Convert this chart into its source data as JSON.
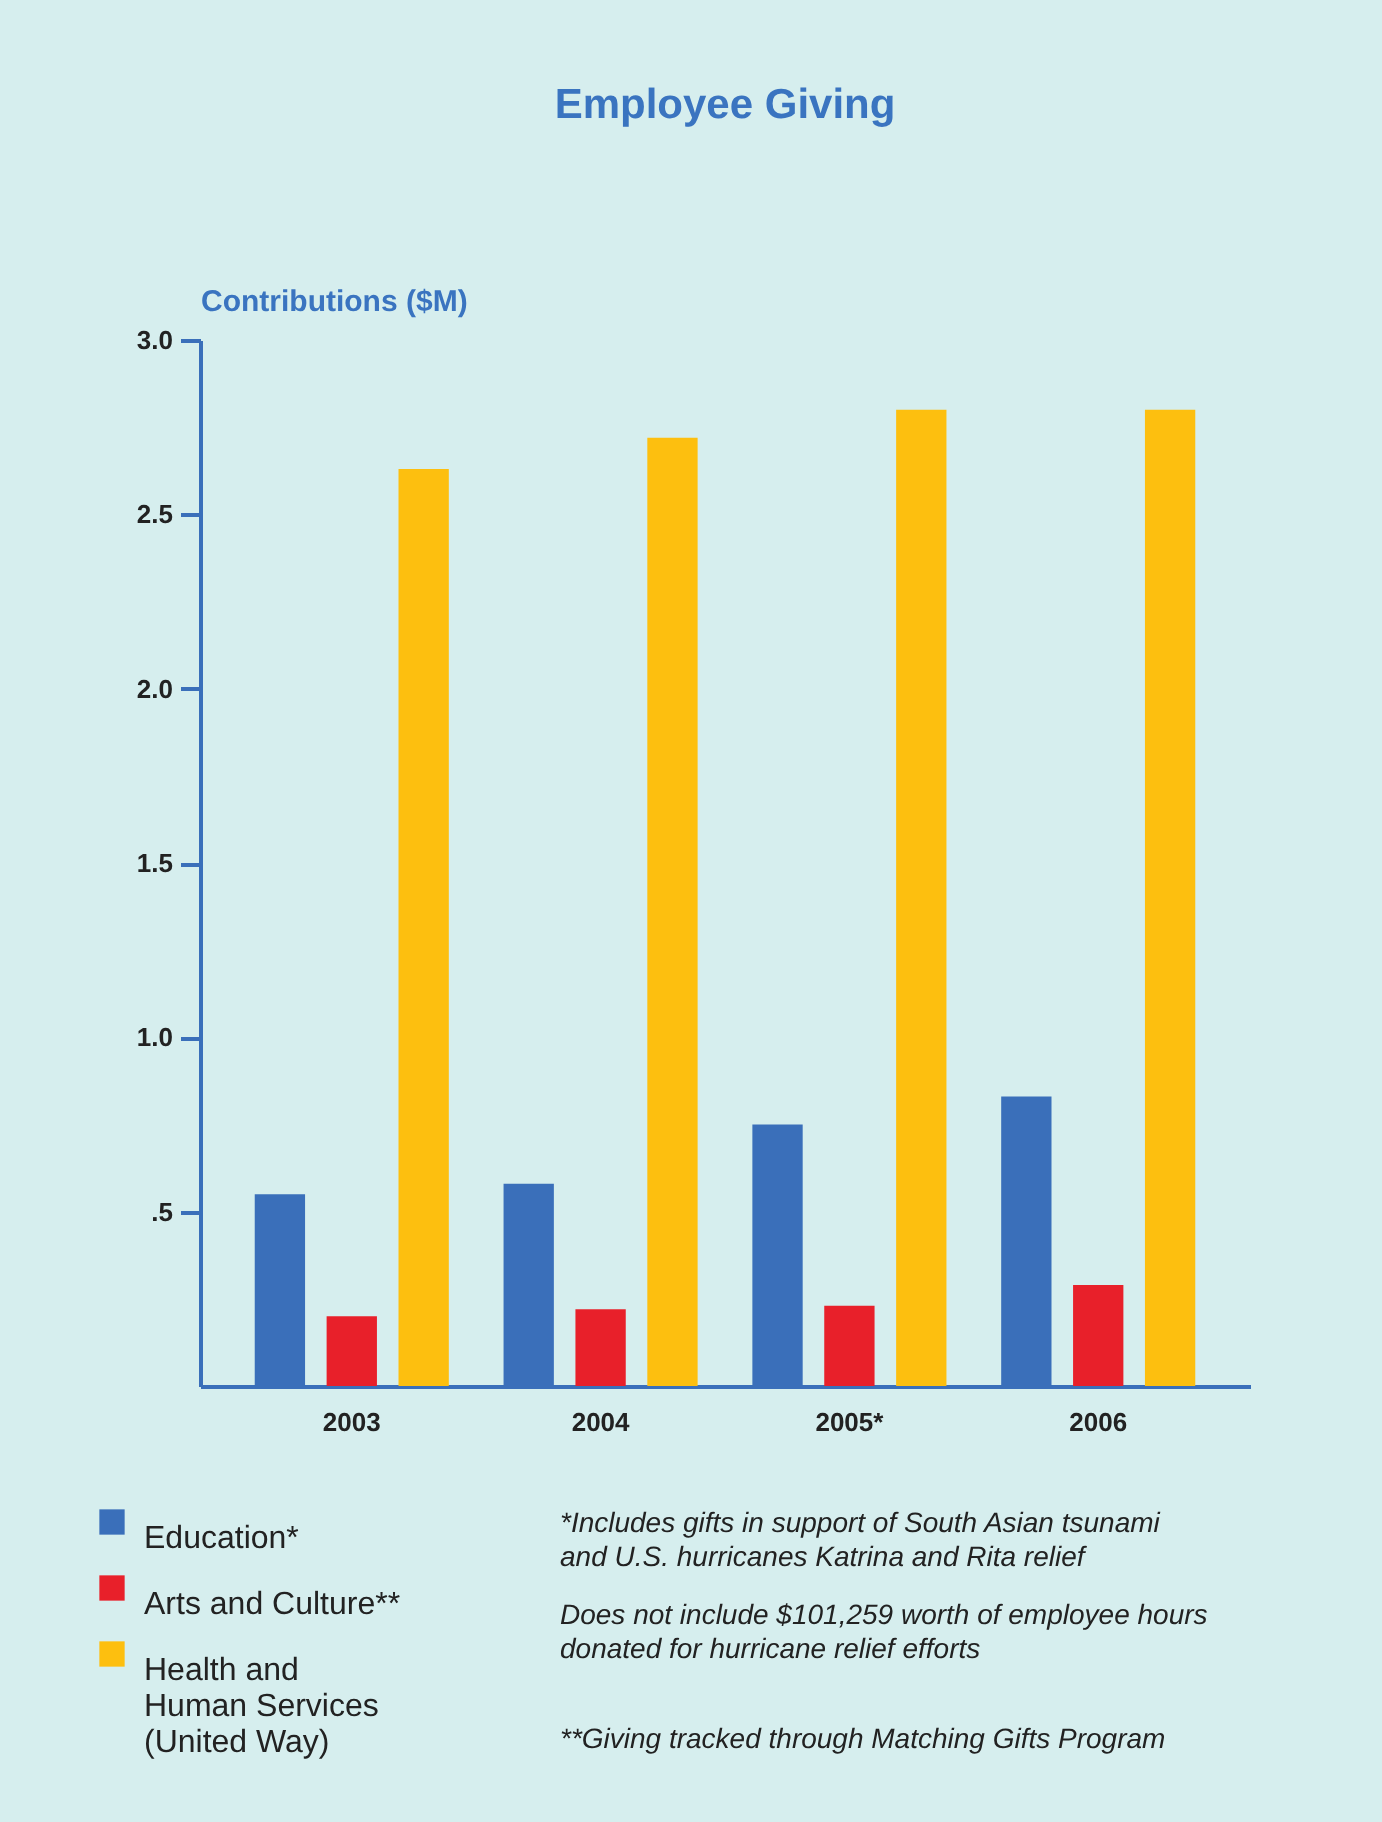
{
  "chart_data": {
    "type": "bar",
    "title": "Employee Giving",
    "ylabel": "Contributions ($M)",
    "categories": [
      "2003",
      "2004",
      "2005*",
      "2006"
    ],
    "series": [
      {
        "name": "Education*",
        "color": "#3a6fba",
        "values": [
          0.55,
          0.58,
          0.75,
          0.83
        ]
      },
      {
        "name": "Arts and Culture**",
        "color": "#e8202a",
        "values": [
          0.2,
          0.22,
          0.23,
          0.29
        ]
      },
      {
        "name": "Health and Human Services (United Way)",
        "color": "#fdbf0f",
        "values": [
          2.63,
          2.72,
          2.8,
          2.8
        ]
      }
    ],
    "ylim": [
      0,
      3
    ],
    "yticks": [
      {
        "value": 0.5,
        "label": ".5"
      },
      {
        "value": 1,
        "label": "1.0"
      },
      {
        "value": 1.5,
        "label": "1.5"
      },
      {
        "value": 2,
        "label": "2.0"
      },
      {
        "value": 2.5,
        "label": "2.5"
      },
      {
        "value": 3,
        "label": "3.0"
      }
    ],
    "grid": false,
    "legend": "bottom left",
    "annotations": [
      "*Includes gifts in support of South Asian tsunami and U.S. hurricanes Katrina and Rita relief",
      "Does not include $101,259 worth of employee hours donated for hurricane relief efforts",
      "**Giving tracked through Matching Gifts Program"
    ]
  }
}
